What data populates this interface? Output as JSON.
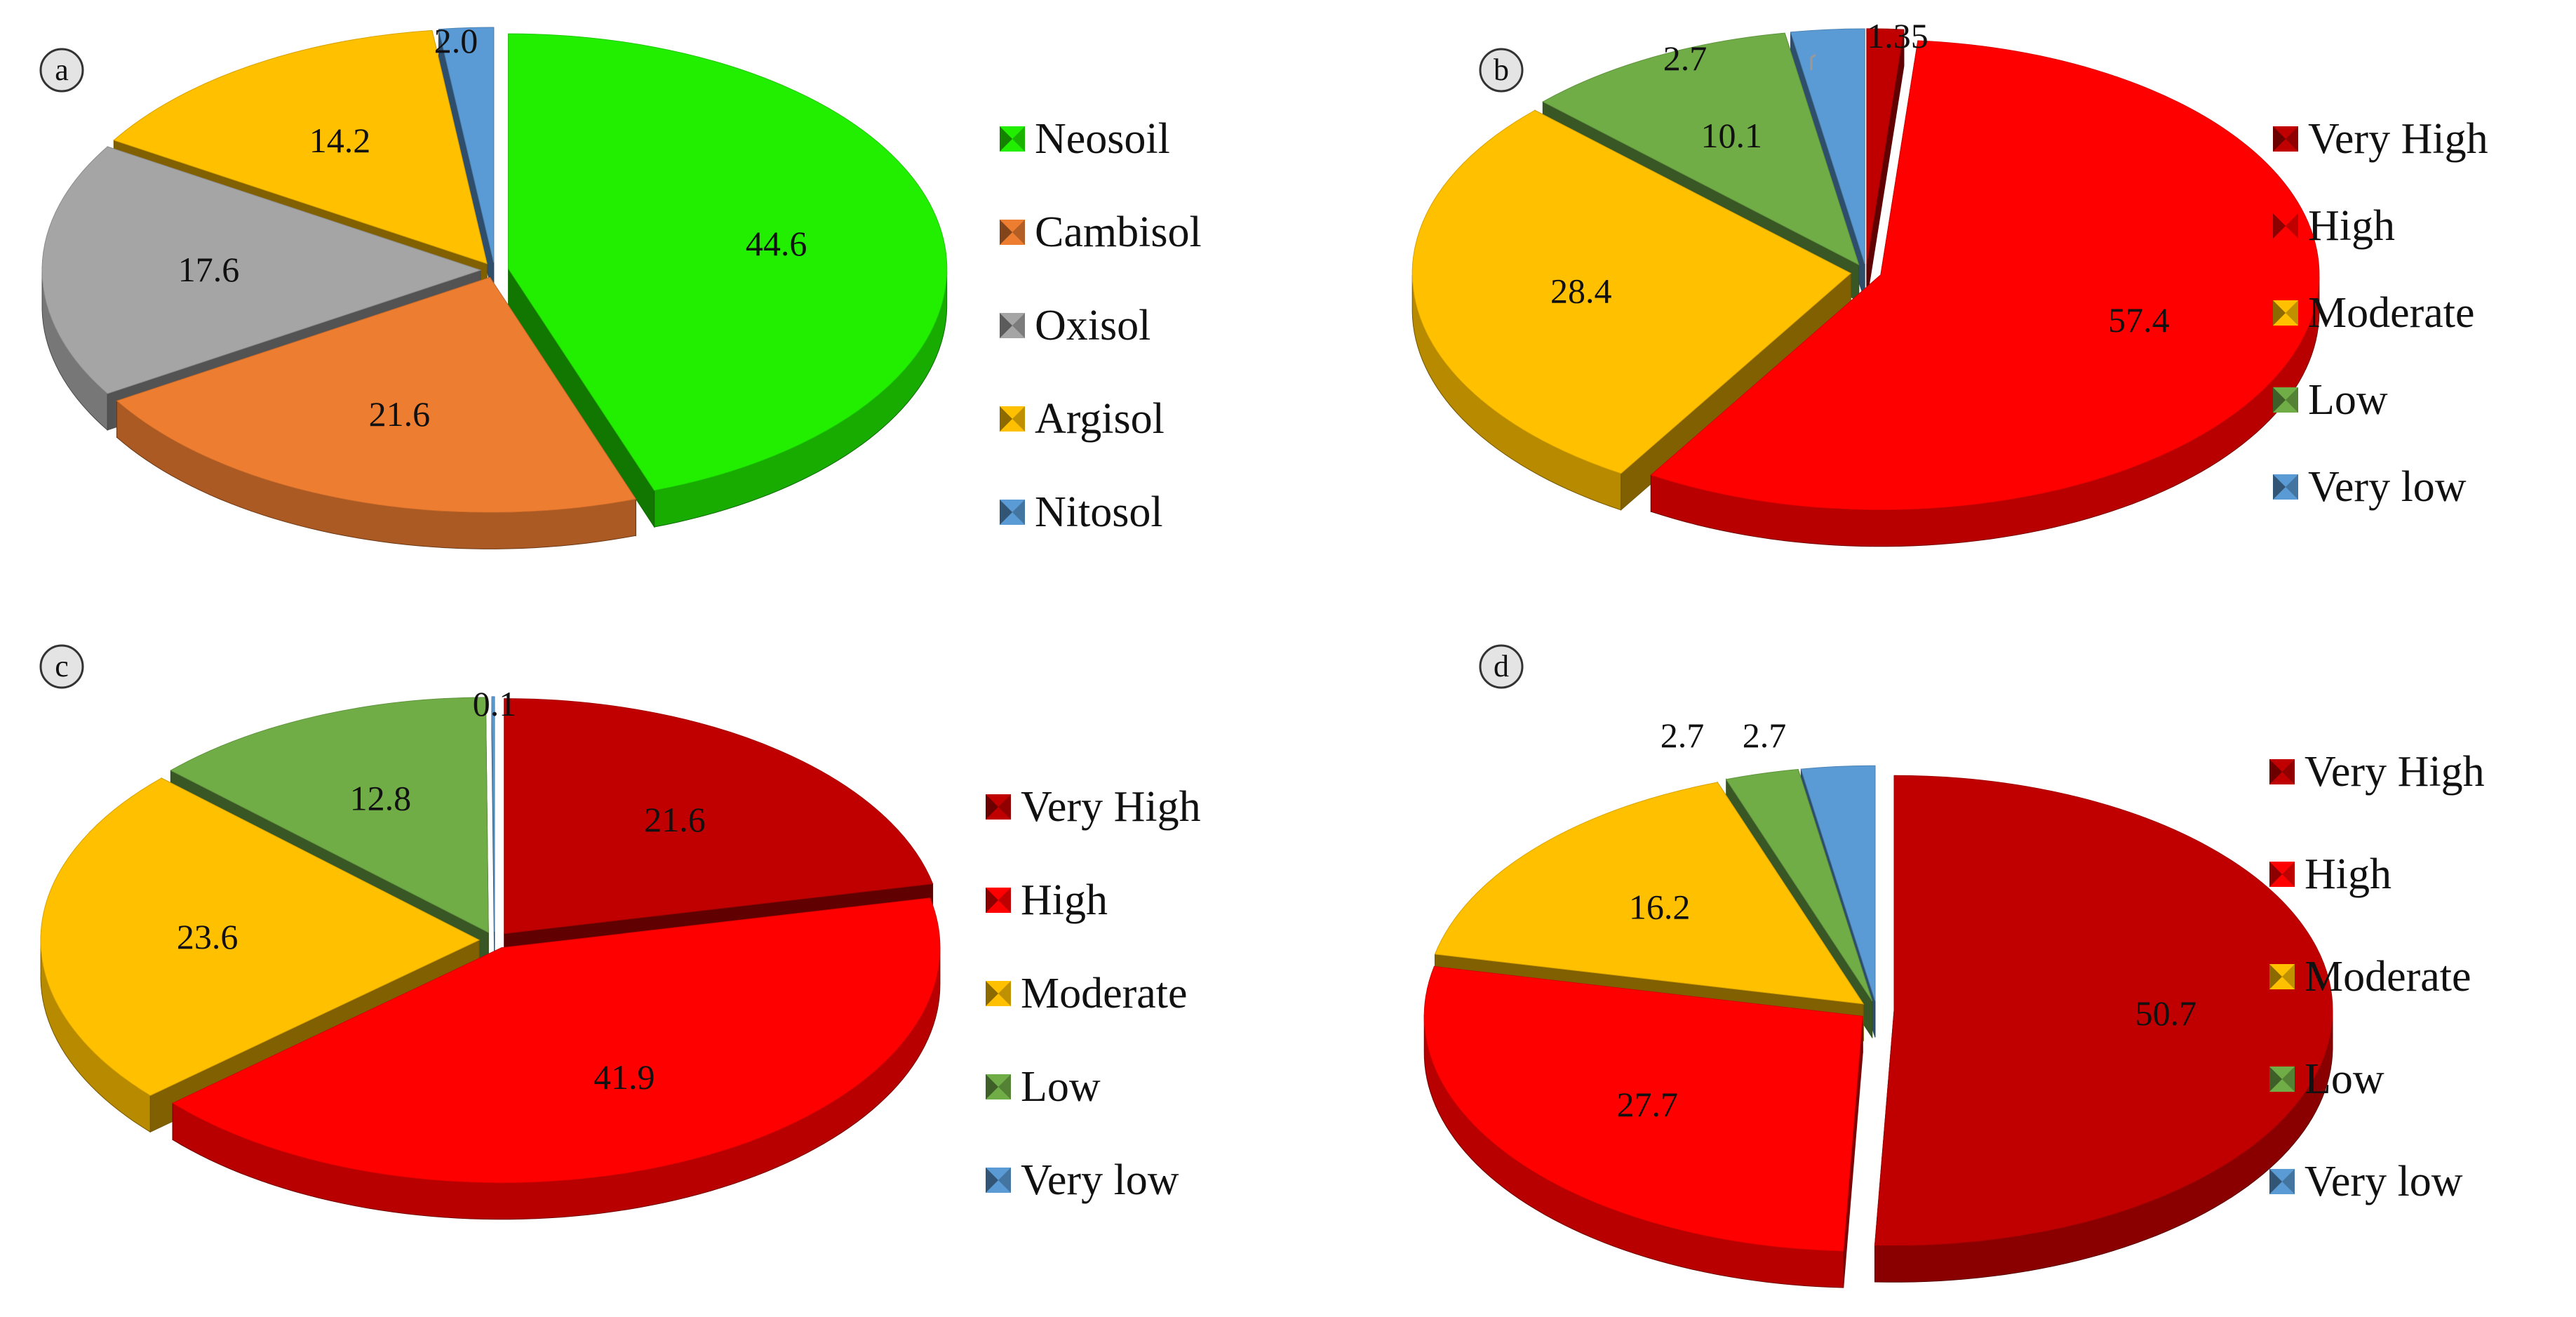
{
  "chart_data": [
    {
      "panel_label": "a",
      "type": "pie",
      "style": "3d-exploded",
      "legend_position": "right",
      "slices": [
        {
          "label": "Neosoil",
          "value": 44.6,
          "value_text": "44.6",
          "color": "#22ee00"
        },
        {
          "label": "Cambisol",
          "value": 21.6,
          "value_text": "21.6",
          "color": "#ed7d31"
        },
        {
          "label": "Oxisol",
          "value": 17.6,
          "value_text": "17.6",
          "color": "#a5a5a5"
        },
        {
          "label": "Argisol",
          "value": 14.2,
          "value_text": "14.2",
          "color": "#ffc000"
        },
        {
          "label": "Nitosol",
          "value": 2.0,
          "value_text": "2.0",
          "color": "#5b9bd5"
        }
      ]
    },
    {
      "panel_label": "b",
      "type": "pie",
      "style": "3d-exploded",
      "legend_position": "right",
      "slices": [
        {
          "label": "Very High",
          "value": 1.35,
          "value_text": "1.35",
          "color": "#c00000"
        },
        {
          "label": "High",
          "value": 57.4,
          "value_text": "57.4",
          "color": "#ff0000"
        },
        {
          "label": "Moderate",
          "value": 28.4,
          "value_text": "28.4",
          "color": "#ffc000"
        },
        {
          "label": "Low",
          "value": 10.1,
          "value_text": "10.1",
          "color": "#70ad47"
        },
        {
          "label": "Very low",
          "value": 2.7,
          "value_text": "2.7",
          "color": "#5b9bd5"
        }
      ]
    },
    {
      "panel_label": "c",
      "type": "pie",
      "style": "3d-exploded",
      "legend_position": "right",
      "slices": [
        {
          "label": "Very High",
          "value": 21.6,
          "value_text": "21.6",
          "color": "#c00000"
        },
        {
          "label": "High",
          "value": 41.9,
          "value_text": "41.9",
          "color": "#ff0000"
        },
        {
          "label": "Moderate",
          "value": 23.6,
          "value_text": "23.6",
          "color": "#ffc000"
        },
        {
          "label": "Low",
          "value": 12.8,
          "value_text": "12.8",
          "color": "#70ad47"
        },
        {
          "label": "Very low",
          "value": 0.1,
          "value_text": "0.1",
          "color": "#5b9bd5"
        }
      ]
    },
    {
      "panel_label": "d",
      "type": "pie",
      "style": "3d-exploded",
      "legend_position": "right",
      "slices": [
        {
          "label": "Very High",
          "value": 50.7,
          "value_text": "50.7",
          "color": "#c00000"
        },
        {
          "label": "High",
          "value": 27.7,
          "value_text": "27.7",
          "color": "#ff0000"
        },
        {
          "label": "Moderate",
          "value": 16.2,
          "value_text": "16.2",
          "color": "#ffc000"
        },
        {
          "label": "Low",
          "value": 2.7,
          "value_text": "2.7",
          "color": "#70ad47"
        },
        {
          "label": "Very low",
          "value": 2.7,
          "value_text": "2.7",
          "color": "#5b9bd5"
        }
      ]
    }
  ]
}
